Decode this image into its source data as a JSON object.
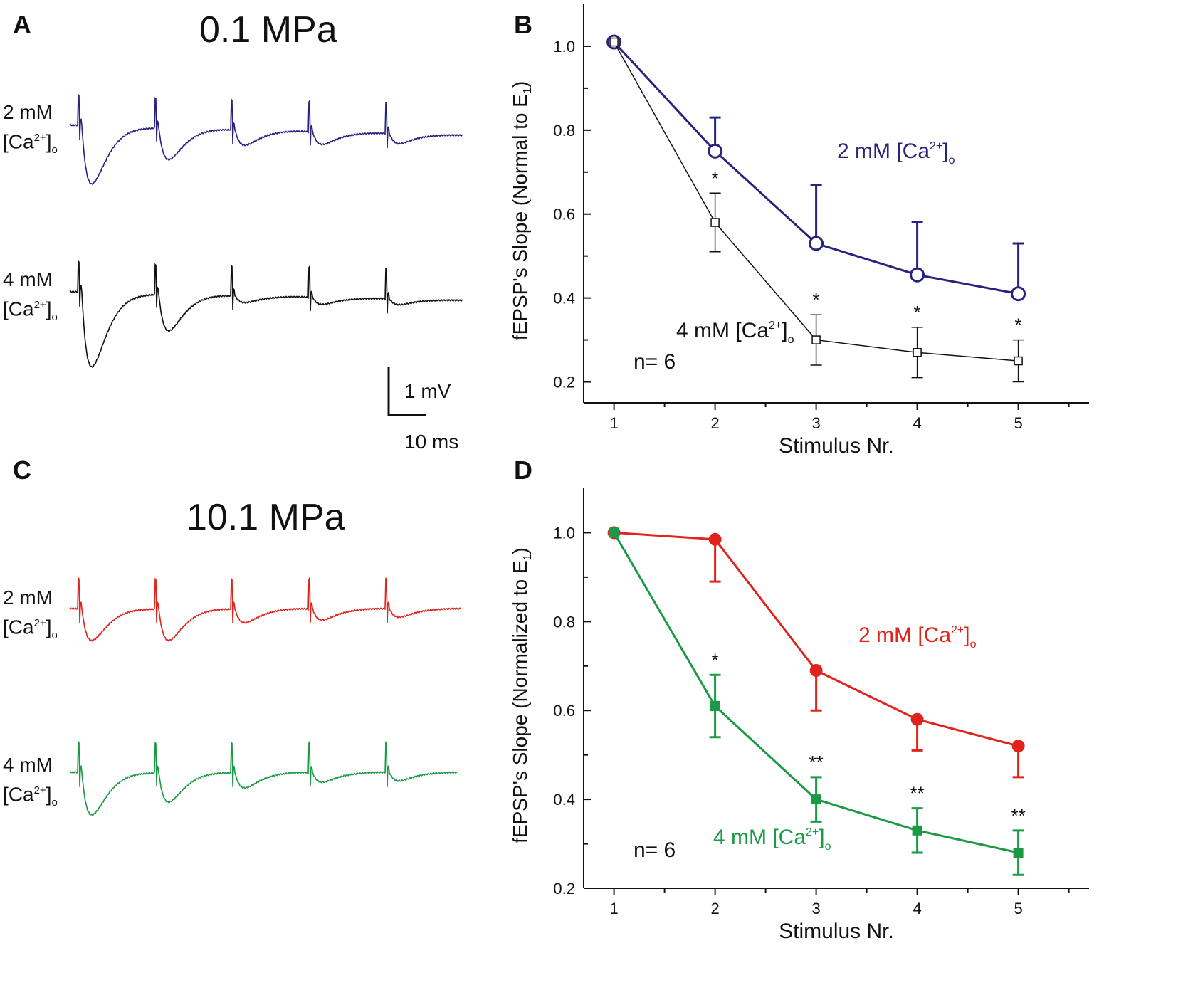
{
  "panels": {
    "A": {
      "letter": "A",
      "pressure": "0.1 MPa",
      "traces": [
        {
          "label_a": "2 mM",
          "label_b": "[Ca",
          "sup": "2+",
          "sub": "o",
          "color": "#27237e"
        },
        {
          "label_a": "4 mM",
          "label_b": "[Ca",
          "sup": "2+",
          "sub": "o",
          "color": "#111111"
        }
      ],
      "scale": {
        "v": "1 mV",
        "t": "10 ms"
      }
    },
    "B": {
      "letter": "B"
    },
    "C": {
      "letter": "C",
      "pressure": "10.1 MPa",
      "traces": [
        {
          "label_a": "2 mM",
          "label_b": "[Ca",
          "sup": "2+",
          "sub": "o",
          "color": "#e0231c"
        },
        {
          "label_a": "4 mM",
          "label_b": "[Ca",
          "sup": "2+",
          "sub": "o",
          "color": "#1a9a45"
        }
      ]
    },
    "D": {
      "letter": "D"
    }
  },
  "chart_data": [
    {
      "panel": "B",
      "type": "line",
      "xlabel": "Stimulus Nr.",
      "ylabel": "fEPSP's Slope (Normal to E",
      "ylabel_sub": "1",
      "x": [
        1,
        2,
        3,
        4,
        5
      ],
      "xlim": [
        0.7,
        5.7
      ],
      "ylim": [
        0.15,
        1.1
      ],
      "yticks": [
        "0.2",
        "0.4",
        "0.6",
        "0.8",
        "1.0"
      ],
      "xticks": [
        "1",
        "2",
        "3",
        "4",
        "5"
      ],
      "annotation": "n= 6",
      "series": [
        {
          "name": "2 mM [Ca",
          "sup": "2+",
          "sub": "o",
          "color": "#27237e",
          "marker": "open-circle",
          "values": [
            1.01,
            0.75,
            0.53,
            0.455,
            0.41
          ],
          "errors": [
            0,
            0.08,
            0.14,
            0.125,
            0.12
          ],
          "err_dir": "up"
        },
        {
          "name": "4 mM [Ca",
          "sup": "2+",
          "sub": "o",
          "color": "#111111",
          "marker": "open-square",
          "values": [
            1.01,
            0.58,
            0.3,
            0.27,
            0.25
          ],
          "errors": [
            0,
            0.07,
            0.06,
            0.06,
            0.05
          ],
          "err_dir": "both",
          "stars": [
            "",
            "*",
            "*",
            "*",
            "*"
          ]
        }
      ]
    },
    {
      "panel": "D",
      "type": "line",
      "xlabel": "Stimulus Nr.",
      "ylabel": "fEPSP's Slope (Normalized to E",
      "ylabel_sub": "1",
      "x": [
        1,
        2,
        3,
        4,
        5
      ],
      "xlim": [
        0.7,
        5.7
      ],
      "ylim": [
        0.2,
        1.1
      ],
      "yticks": [
        "0.2",
        "0.4",
        "0.6",
        "0.8",
        "1.0"
      ],
      "xticks": [
        "1",
        "2",
        "3",
        "4",
        "5"
      ],
      "annotation": "n= 6",
      "series": [
        {
          "name": "2 mM [Ca",
          "sup": "2+",
          "sub": "o",
          "color": "#e0231c",
          "marker": "filled-circle",
          "values": [
            1.0,
            0.985,
            0.69,
            0.58,
            0.52
          ],
          "errors": [
            0,
            0.095,
            0.09,
            0.07,
            0.07
          ],
          "err_dir": "down"
        },
        {
          "name": "4 mM [Ca",
          "sup": "2+",
          "sub": "o",
          "color": "#1a9a45",
          "marker": "filled-square",
          "values": [
            1.0,
            0.61,
            0.4,
            0.33,
            0.28
          ],
          "errors": [
            0,
            0.07,
            0.05,
            0.05,
            0.05
          ],
          "err_dir": "both",
          "stars": [
            "",
            "*",
            "**",
            "**",
            "**"
          ]
        }
      ]
    }
  ]
}
